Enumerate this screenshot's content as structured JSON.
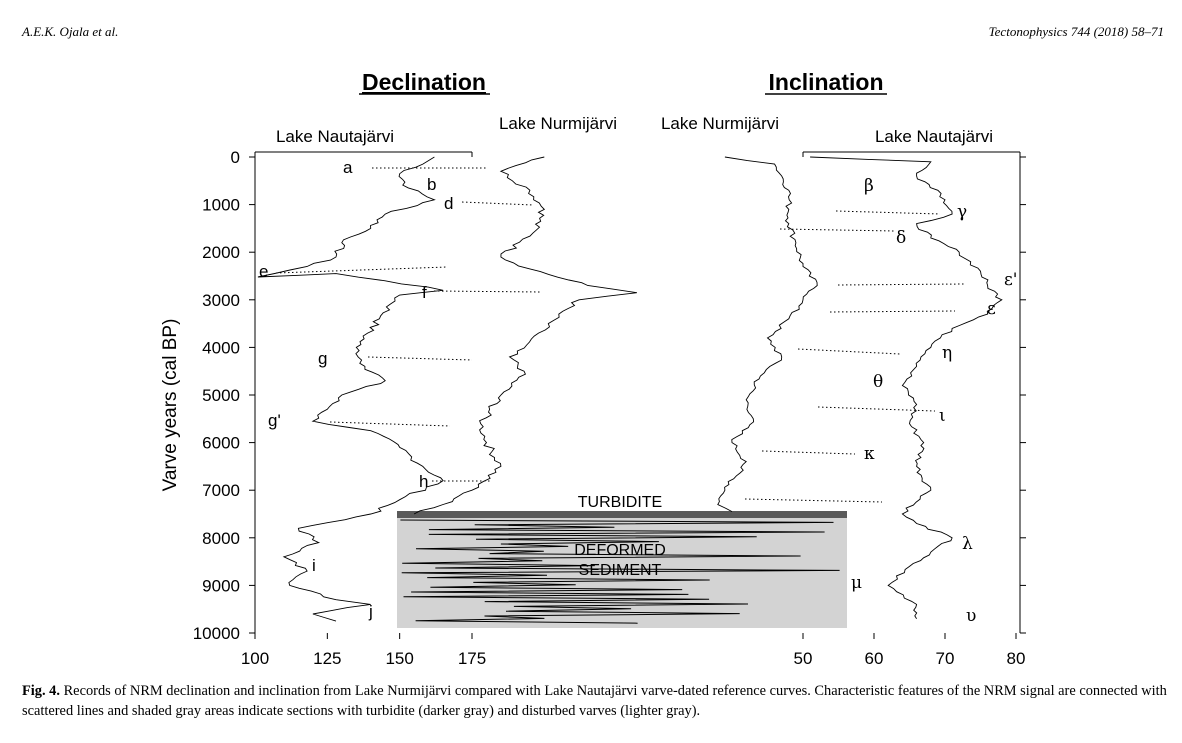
{
  "header": {
    "left": "A.E.K. Ojala et al.",
    "right": "Tectonophysics 744 (2018) 58–71"
  },
  "figure": {
    "panel_declination": "Declination",
    "panel_inclination": "Inclination",
    "series_labels": {
      "dec_nautajarvi": "Lake Nautajärvi",
      "dec_nurmijarvi": "Lake Nurmijärvi",
      "inc_nurmijarvi": "Lake Nurmijärvi",
      "inc_nautajarvi": "Lake Nautajärvi"
    },
    "y_axis_label": "Varve years (cal BP)",
    "turbidite_label": "TURBIDITE",
    "deformed_label_1": "DEFORMED",
    "deformed_label_2": "SEDIMENT"
  },
  "chart_data": {
    "type": "line",
    "ylabel": "Varve years (cal BP)",
    "ylim": [
      10000,
      0
    ],
    "y_ticks": [
      0,
      1000,
      2000,
      3000,
      4000,
      5000,
      6000,
      7000,
      8000,
      9000,
      10000
    ],
    "declination_x_ticks": [
      100,
      125,
      150,
      175
    ],
    "inclination_x_ticks": [
      50,
      60,
      70,
      80
    ],
    "declination_features": [
      "a",
      "b",
      "d",
      "e",
      "f",
      "g",
      "g'",
      "h",
      "i",
      "j"
    ],
    "inclination_features": [
      "β",
      "γ",
      "δ",
      "ε'",
      "ε",
      "η",
      "θ",
      "ι",
      "κ",
      "λ",
      "μ",
      "υ"
    ],
    "shaded_regions": [
      {
        "label": "TURBIDITE",
        "from": 7450,
        "to": 7580,
        "shade": "darker gray"
      },
      {
        "label": "DEFORMED SEDIMENT",
        "from": 7580,
        "to": 9900,
        "shade": "lighter gray"
      }
    ],
    "series": [
      {
        "name": "Lake Nautajärvi",
        "panel": "declination",
        "points": [
          [
            162,
            0
          ],
          [
            158,
            150
          ],
          [
            150,
            350
          ],
          [
            153,
            650
          ],
          [
            162,
            900
          ],
          [
            145,
            1200
          ],
          [
            140,
            1500
          ],
          [
            130,
            1800
          ],
          [
            128,
            2100
          ],
          [
            118,
            2300
          ],
          [
            101,
            2520
          ],
          [
            128,
            2450
          ],
          [
            145,
            2600
          ],
          [
            165,
            2800
          ],
          [
            150,
            2900
          ],
          [
            143,
            3400
          ],
          [
            135,
            4000
          ],
          [
            138,
            4400
          ],
          [
            145,
            4700
          ],
          [
            130,
            5000
          ],
          [
            125,
            5300
          ],
          [
            120,
            5550
          ],
          [
            140,
            5750
          ],
          [
            150,
            6100
          ],
          [
            158,
            6500
          ],
          [
            165,
            6800
          ],
          [
            150,
            7200
          ],
          [
            140,
            7500
          ],
          [
            115,
            7800
          ],
          [
            122,
            8100
          ],
          [
            110,
            8400
          ],
          [
            118,
            8700
          ],
          [
            112,
            9000
          ],
          [
            128,
            9300
          ],
          [
            140,
            9400
          ],
          [
            120,
            9600
          ],
          [
            128,
            9750
          ]
        ]
      },
      {
        "name": "Lake Nurmijärvi",
        "panel": "declination",
        "points": [
          [
            200,
            0
          ],
          [
            185,
            300
          ],
          [
            195,
            700
          ],
          [
            200,
            1100
          ],
          [
            196,
            1600
          ],
          [
            185,
            2100
          ],
          [
            195,
            2350
          ],
          [
            215,
            2700
          ],
          [
            232,
            2850
          ],
          [
            212,
            3000
          ],
          [
            205,
            3300
          ],
          [
            198,
            3700
          ],
          [
            188,
            4200
          ],
          [
            193,
            4500
          ],
          [
            185,
            5000
          ],
          [
            178,
            5600
          ],
          [
            180,
            6000
          ],
          [
            185,
            6500
          ],
          [
            175,
            7000
          ],
          [
            165,
            7300
          ],
          [
            155,
            7500
          ]
        ]
      },
      {
        "name": "Lake Nurmijärvi",
        "panel": "inclination",
        "points": [
          [
            39,
            0
          ],
          [
            46,
            150
          ],
          [
            47,
            400
          ],
          [
            48,
            700
          ],
          [
            48,
            1100
          ],
          [
            48,
            1400
          ],
          [
            49,
            1800
          ],
          [
            50,
            2300
          ],
          [
            52,
            2700
          ],
          [
            50,
            3000
          ],
          [
            48,
            3400
          ],
          [
            45,
            3800
          ],
          [
            47,
            4200
          ],
          [
            44,
            4600
          ],
          [
            42,
            5100
          ],
          [
            43,
            5500
          ],
          [
            40,
            6000
          ],
          [
            42,
            6400
          ],
          [
            39,
            7000
          ],
          [
            38,
            7300
          ],
          [
            40,
            7450
          ]
        ]
      },
      {
        "name": "Lake Nautajärvi",
        "panel": "inclination",
        "points": [
          [
            51,
            0
          ],
          [
            68,
            100
          ],
          [
            66,
            400
          ],
          [
            69,
            700
          ],
          [
            70,
            900
          ],
          [
            71,
            1200
          ],
          [
            66,
            1400
          ],
          [
            68,
            1700
          ],
          [
            72,
            2000
          ],
          [
            75,
            2400
          ],
          [
            76,
            2700
          ],
          [
            78,
            3000
          ],
          [
            76,
            3300
          ],
          [
            71,
            3600
          ],
          [
            68,
            4000
          ],
          [
            66,
            4400
          ],
          [
            64,
            4800
          ],
          [
            66,
            5200
          ],
          [
            65,
            5600
          ],
          [
            67,
            6000
          ],
          [
            66,
            6500
          ],
          [
            68,
            7000
          ],
          [
            64,
            7500
          ],
          [
            66,
            7700
          ],
          [
            71,
            8000
          ],
          [
            68,
            8300
          ],
          [
            65,
            8600
          ],
          [
            62,
            9000
          ],
          [
            66,
            9400
          ],
          [
            66,
            9700
          ]
        ]
      }
    ]
  },
  "caption": {
    "label": "Fig. 4.",
    "text": " Records of NRM declination and inclination from Lake Nurmijärvi compared with Lake Nautajärvi varve-dated reference curves. Characteristic features of the NRM signal are connected with scattered lines and shaded gray areas indicate sections with turbidite (darker gray) and disturbed varves (lighter gray)."
  }
}
